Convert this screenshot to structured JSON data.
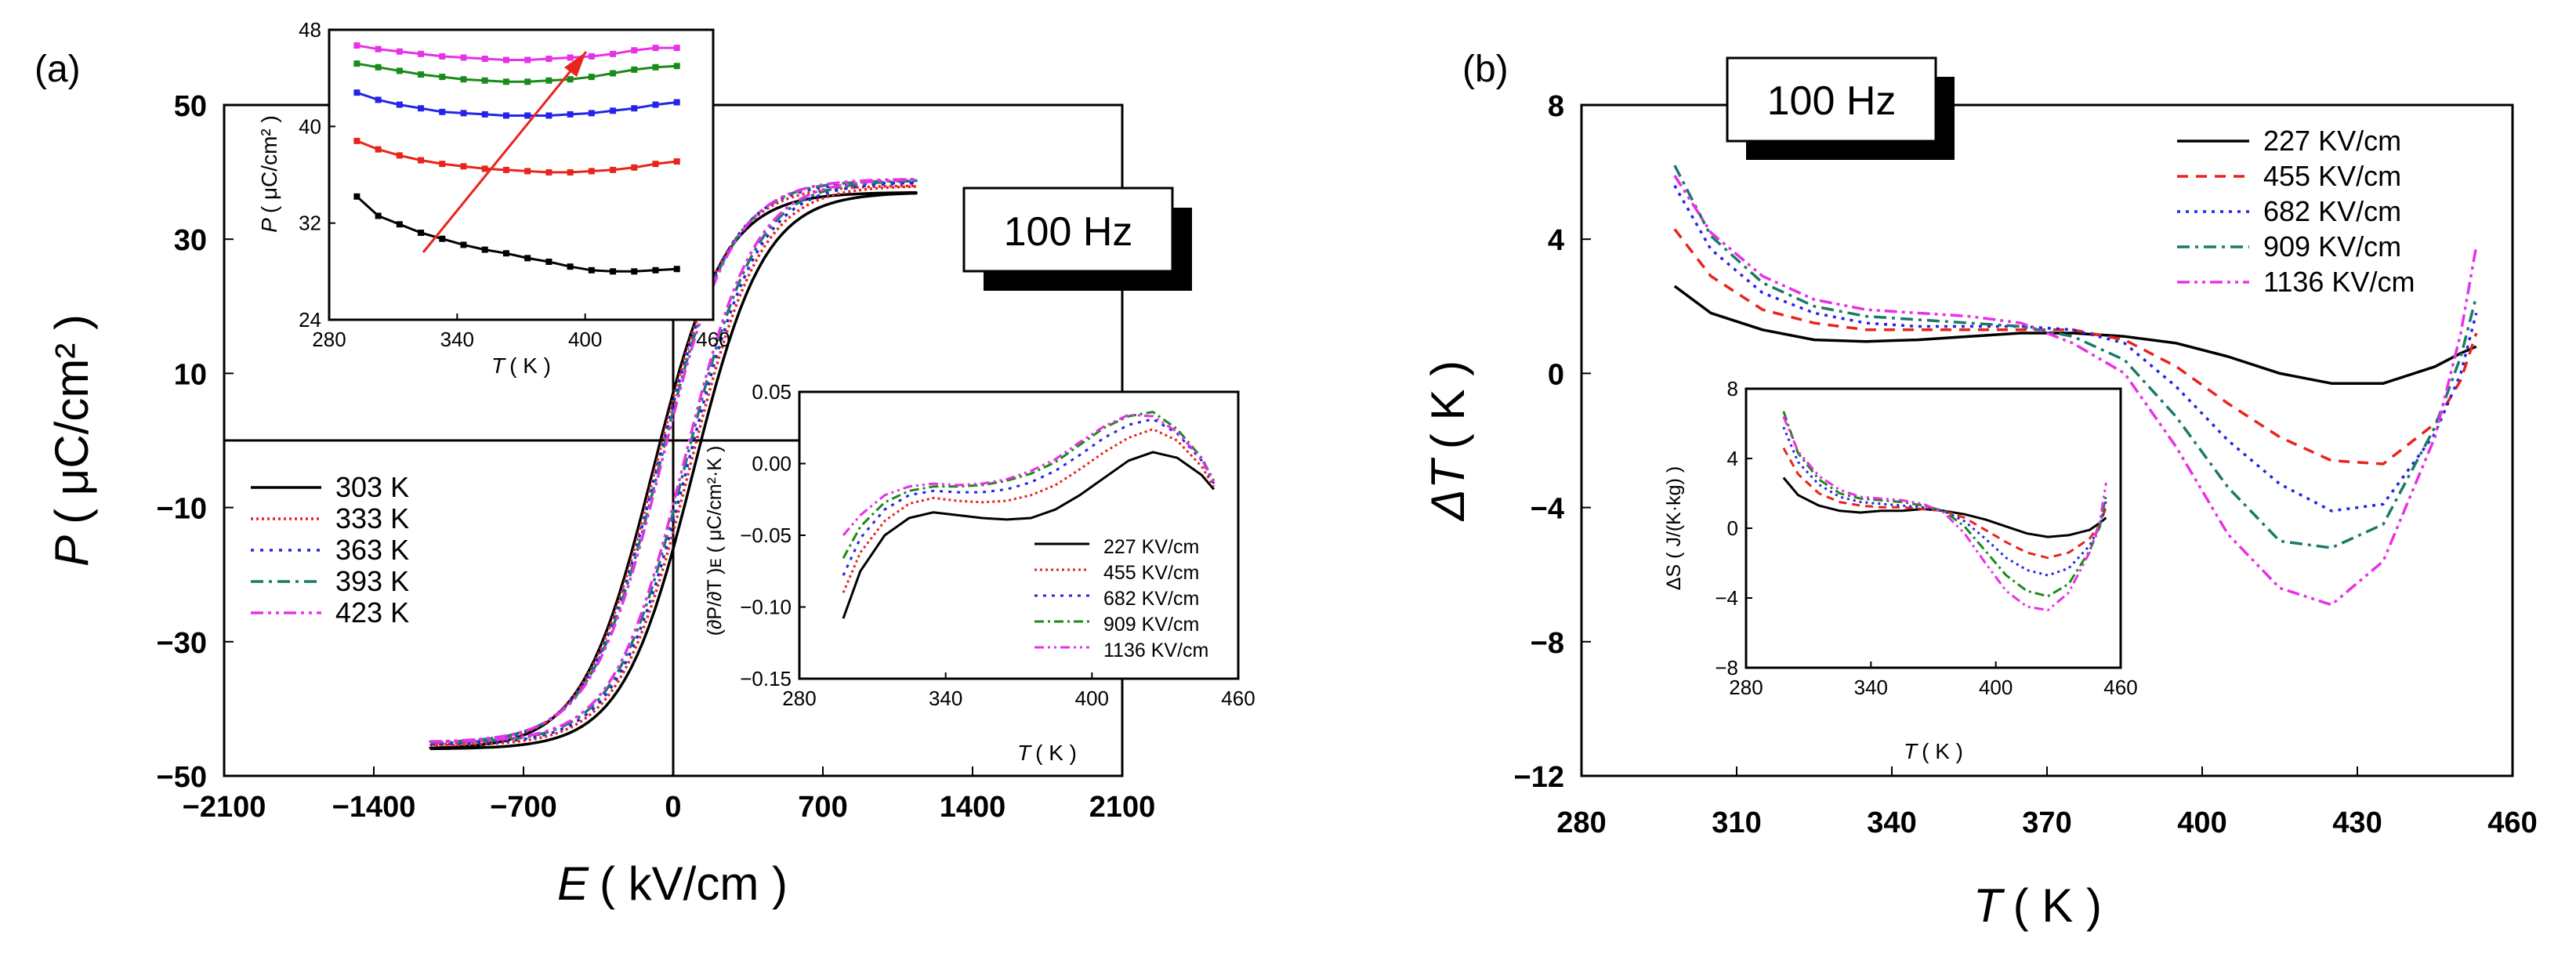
{
  "figure": {
    "panel_a_label": "(a)",
    "panel_b_label": "(b)",
    "freq_label_a": "100 Hz",
    "freq_label_b": "100 Hz"
  },
  "chart_data": [
    {
      "id": "a-main",
      "type": "line",
      "title": "",
      "xlabel_var": "E",
      "xlabel_unit": "( kV/cm )",
      "ylabel_var": "P",
      "ylabel_unit": "( μC/cm² )",
      "xlim": [
        -2100,
        2100
      ],
      "ylim": [
        -50,
        50
      ],
      "xticks": [
        "−2100",
        "−1400",
        "−700",
        "0",
        "700",
        "1400",
        "2100"
      ],
      "yticks": [
        "−50",
        "−30",
        "−10",
        "10",
        "30",
        "50"
      ],
      "legend_position": "bottom-left",
      "series": [
        {
          "name": "303 K",
          "color": "#000000",
          "dash": "",
          "pmax": 37.0,
          "pmin": -46.0,
          "pr": 7.0,
          "ec": 95,
          "pr_down": -21.0
        },
        {
          "name": "333 K",
          "color": "#e8241c",
          "dash": "3,4",
          "pmax": 38.0,
          "pmin": -45.5,
          "pr": 5.5,
          "ec": 80,
          "pr_down": -18.0
        },
        {
          "name": "363 K",
          "color": "#2424e8",
          "dash": "4,8",
          "pmax": 38.5,
          "pmin": -45.3,
          "pr": 4.5,
          "ec": 70,
          "pr_down": -16.0
        },
        {
          "name": "393 K",
          "color": "#1a7a6a",
          "dash": "16,7,4,7",
          "pmax": 38.8,
          "pmin": -45.1,
          "pr": 3.8,
          "ec": 60,
          "pr_down": -14.0
        },
        {
          "name": "423 K",
          "color": "#e830e8",
          "dash": "16,6,4,6,4,6",
          "pmax": 39.0,
          "pmin": -45.0,
          "pr": 3.2,
          "ec": 52,
          "pr_down": -13.0
        }
      ]
    },
    {
      "id": "a-inset-top",
      "type": "line",
      "xlabel_var": "T",
      "xlabel_unit": "( K )",
      "ylabel_var": "P",
      "ylabel_unit": "( μC/cm² )",
      "xlim": [
        280,
        460
      ],
      "ylim": [
        24,
        48
      ],
      "xticks": [
        "280",
        "340",
        "400",
        "460"
      ],
      "yticks": [
        "24",
        "32",
        "40",
        "48"
      ],
      "x": [
        293,
        303,
        313,
        323,
        333,
        343,
        353,
        363,
        373,
        383,
        393,
        403,
        413,
        423,
        433,
        443
      ],
      "series": [
        {
          "name": "227 KV/cm",
          "color": "#000000",
          "values": [
            34.2,
            32.6,
            31.9,
            31.2,
            30.7,
            30.2,
            29.8,
            29.5,
            29.1,
            28.8,
            28.4,
            28.1,
            28.0,
            28.0,
            28.1,
            28.2
          ]
        },
        {
          "name": "455 KV/cm",
          "color": "#e8241c",
          "values": [
            38.8,
            38.1,
            37.6,
            37.2,
            36.9,
            36.7,
            36.5,
            36.4,
            36.3,
            36.2,
            36.2,
            36.3,
            36.4,
            36.6,
            36.9,
            37.1
          ]
        },
        {
          "name": "682 KV/cm",
          "color": "#2424e8",
          "values": [
            42.8,
            42.2,
            41.8,
            41.5,
            41.2,
            41.1,
            41.0,
            40.9,
            40.9,
            40.9,
            41.0,
            41.1,
            41.3,
            41.5,
            41.8,
            42.0
          ]
        },
        {
          "name": "909 KV/cm",
          "color": "#1a8a1a",
          "values": [
            45.2,
            44.9,
            44.6,
            44.3,
            44.1,
            43.9,
            43.8,
            43.7,
            43.7,
            43.8,
            43.9,
            44.1,
            44.4,
            44.7,
            44.9,
            45.0
          ]
        },
        {
          "name": "1136 KV/cm",
          "color": "#e830e8",
          "values": [
            46.7,
            46.4,
            46.2,
            46.0,
            45.8,
            45.7,
            45.6,
            45.5,
            45.5,
            45.6,
            45.7,
            45.8,
            46.0,
            46.3,
            46.5,
            46.5
          ]
        }
      ]
    },
    {
      "id": "a-inset-bottom",
      "type": "line",
      "xlabel_var": "T",
      "xlabel_unit": "( K )",
      "ylabel": "(∂P/∂T )ᴇ ( μC/cm²·K )",
      "xlim": [
        280,
        460
      ],
      "ylim": [
        -0.15,
        0.05
      ],
      "xticks": [
        "280",
        "340",
        "400",
        "460"
      ],
      "yticks": [
        "0.05",
        "0.00",
        "−0.05",
        "−0.10",
        "−0.15"
      ],
      "legend_position": "bottom-right",
      "x": [
        298,
        305,
        315,
        325,
        335,
        345,
        355,
        365,
        375,
        385,
        395,
        405,
        415,
        425,
        435,
        445,
        450
      ],
      "series": [
        {
          "name": "227 KV/cm",
          "color": "#000000",
          "dash": "",
          "values": [
            -0.108,
            -0.075,
            -0.05,
            -0.038,
            -0.034,
            -0.036,
            -0.038,
            -0.039,
            -0.038,
            -0.032,
            -0.022,
            -0.01,
            0.002,
            0.008,
            0.004,
            -0.008,
            -0.018
          ]
        },
        {
          "name": "455 KV/cm",
          "color": "#e8241c",
          "dash": "3,4",
          "values": [
            -0.09,
            -0.062,
            -0.04,
            -0.028,
            -0.024,
            -0.026,
            -0.027,
            -0.026,
            -0.022,
            -0.015,
            -0.004,
            0.008,
            0.018,
            0.024,
            0.016,
            -0.002,
            -0.016
          ]
        },
        {
          "name": "682 KV/cm",
          "color": "#2424e8",
          "dash": "4,7",
          "values": [
            -0.078,
            -0.052,
            -0.032,
            -0.022,
            -0.019,
            -0.02,
            -0.02,
            -0.018,
            -0.013,
            -0.005,
            0.006,
            0.018,
            0.027,
            0.031,
            0.021,
            0.002,
            -0.014
          ]
        },
        {
          "name": "909 KV/cm",
          "color": "#1a8a1a",
          "dash": "12,5,3,5",
          "values": [
            -0.066,
            -0.044,
            -0.027,
            -0.019,
            -0.016,
            -0.016,
            -0.015,
            -0.012,
            -0.007,
            0.001,
            0.013,
            0.025,
            0.033,
            0.036,
            0.024,
            0.004,
            -0.012
          ]
        },
        {
          "name": "1136 KV/cm",
          "color": "#e830e8",
          "dash": "12,5,3,5,3,5",
          "values": [
            -0.05,
            -0.036,
            -0.022,
            -0.016,
            -0.014,
            -0.015,
            -0.014,
            -0.011,
            -0.005,
            0.003,
            0.015,
            0.026,
            0.034,
            0.033,
            0.022,
            0.003,
            -0.013
          ]
        }
      ]
    },
    {
      "id": "b-main",
      "type": "line",
      "xlabel_var": "T",
      "xlabel_unit": "( K )",
      "ylabel_var": "ΔT",
      "ylabel_unit": "( K )",
      "xlim": [
        280,
        460
      ],
      "ylim": [
        -12,
        8
      ],
      "xticks": [
        "280",
        "310",
        "340",
        "370",
        "400",
        "430",
        "460"
      ],
      "yticks": [
        "8",
        "4",
        "0",
        "−4",
        "−8",
        "−12"
      ],
      "legend_position": "top-right",
      "x": [
        298,
        305,
        315,
        325,
        335,
        345,
        355,
        365,
        375,
        385,
        395,
        405,
        415,
        425,
        435,
        445,
        450,
        453
      ],
      "series": [
        {
          "name": "227 KV/cm",
          "color": "#000000",
          "dash": "",
          "values": [
            2.6,
            1.8,
            1.3,
            1.0,
            0.95,
            1.0,
            1.1,
            1.2,
            1.2,
            1.1,
            0.9,
            0.5,
            0.0,
            -0.3,
            -0.3,
            0.2,
            0.6,
            0.8
          ]
        },
        {
          "name": "455 KV/cm",
          "color": "#e8241c",
          "dash": "14,10",
          "values": [
            4.3,
            2.9,
            1.9,
            1.5,
            1.3,
            1.3,
            1.3,
            1.3,
            1.3,
            1.0,
            0.2,
            -0.9,
            -1.9,
            -2.6,
            -2.7,
            -1.5,
            -0.2,
            1.2
          ]
        },
        {
          "name": "682 KV/cm",
          "color": "#2424e8",
          "dash": "4,7",
          "values": [
            5.6,
            3.7,
            2.4,
            1.8,
            1.5,
            1.4,
            1.4,
            1.4,
            1.3,
            0.9,
            -0.4,
            -2.0,
            -3.3,
            -4.1,
            -3.9,
            -1.8,
            0.0,
            1.8
          ]
        },
        {
          "name": "909 KV/cm",
          "color": "#1a7a6a",
          "dash": "16,7,4,7",
          "values": [
            6.2,
            4.1,
            2.7,
            2.0,
            1.7,
            1.6,
            1.5,
            1.4,
            1.1,
            0.4,
            -1.3,
            -3.4,
            -5.0,
            -5.2,
            -4.5,
            -1.6,
            0.5,
            2.3
          ]
        },
        {
          "name": "1136 KV/cm",
          "color": "#e830e8",
          "dash": "16,6,4,6,4,6",
          "values": [
            5.9,
            4.2,
            2.9,
            2.2,
            1.9,
            1.8,
            1.7,
            1.5,
            0.9,
            0.0,
            -2.2,
            -4.8,
            -6.4,
            -6.9,
            -5.6,
            -1.9,
            1.2,
            3.8
          ]
        }
      ]
    },
    {
      "id": "b-inset",
      "type": "line",
      "xlabel_var": "T",
      "xlabel_unit": "( K )",
      "ylabel": "ΔS ( J/(K·kg) )",
      "xlim": [
        280,
        460
      ],
      "ylim": [
        -8,
        8
      ],
      "xticks": [
        "280",
        "340",
        "400",
        "460"
      ],
      "yticks": [
        "8",
        "4",
        "0",
        "−4",
        "−8"
      ],
      "x": [
        298,
        305,
        315,
        325,
        335,
        345,
        355,
        365,
        375,
        385,
        395,
        405,
        415,
        425,
        435,
        445,
        450,
        453
      ],
      "series": [
        {
          "name": "227 KV/cm",
          "color": "#000000",
          "dash": "",
          "values": [
            2.9,
            1.9,
            1.3,
            1.0,
            0.9,
            1.0,
            1.0,
            1.1,
            1.0,
            0.8,
            0.5,
            0.1,
            -0.3,
            -0.5,
            -0.4,
            -0.1,
            0.3,
            0.6
          ]
        },
        {
          "name": "455 KV/cm",
          "color": "#e8241c",
          "dash": "10,7",
          "values": [
            4.6,
            3.1,
            2.0,
            1.5,
            1.3,
            1.2,
            1.2,
            1.1,
            1.0,
            0.6,
            -0.1,
            -0.8,
            -1.4,
            -1.7,
            -1.4,
            -0.6,
            0.2,
            1.2
          ]
        },
        {
          "name": "682 KV/cm",
          "color": "#2424e8",
          "dash": "3,5",
          "values": [
            5.8,
            3.8,
            2.5,
            1.8,
            1.5,
            1.4,
            1.3,
            1.2,
            1.0,
            0.4,
            -0.6,
            -1.7,
            -2.4,
            -2.7,
            -2.3,
            -1.0,
            0.1,
            1.6
          ]
        },
        {
          "name": "909 KV/cm",
          "color": "#1a8a1a",
          "dash": "12,5,3,5",
          "values": [
            6.7,
            4.3,
            2.8,
            2.0,
            1.7,
            1.6,
            1.5,
            1.3,
            1.0,
            0.1,
            -1.3,
            -2.7,
            -3.6,
            -3.9,
            -3.2,
            -1.3,
            0.1,
            1.9
          ]
        },
        {
          "name": "1136 KV/cm",
          "color": "#e830e8",
          "dash": "12,5,3,5,3,5",
          "values": [
            6.4,
            4.4,
            3.0,
            2.2,
            1.8,
            1.7,
            1.6,
            1.4,
            0.9,
            -0.3,
            -2.0,
            -3.6,
            -4.5,
            -4.7,
            -3.7,
            -1.4,
            0.4,
            2.6
          ]
        }
      ]
    }
  ]
}
